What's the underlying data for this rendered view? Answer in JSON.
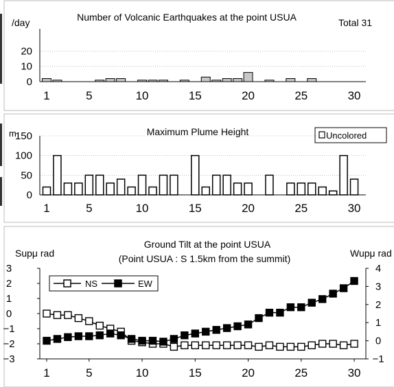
{
  "chart_data": [
    {
      "type": "bar",
      "title": "Number of Volcanic Earthquakes at the point USUA",
      "ylabel": "/day",
      "annotation": "Total 31",
      "ylim": [
        0,
        30
      ],
      "yticks": [
        0,
        10,
        20
      ],
      "xticks": [
        1,
        5,
        10,
        15,
        20,
        25,
        30
      ],
      "x": [
        1,
        2,
        3,
        4,
        5,
        6,
        7,
        8,
        9,
        10,
        11,
        12,
        13,
        14,
        15,
        16,
        17,
        18,
        19,
        20,
        21,
        22,
        23,
        24,
        25,
        26,
        27,
        28,
        29,
        30
      ],
      "values": [
        2,
        1,
        0,
        0,
        0,
        1,
        2,
        2,
        0,
        1,
        1,
        1,
        0,
        1,
        0,
        3,
        1,
        2,
        2,
        6,
        0,
        1,
        0,
        2,
        0,
        2,
        0,
        0,
        0,
        0
      ],
      "bar_fill": "#c8c8c8"
    },
    {
      "type": "bar",
      "title": "Maximum Plume Height",
      "ylabel": "m",
      "legend": [
        "Uncolored"
      ],
      "ylim": [
        0,
        150
      ],
      "yticks": [
        0,
        50,
        100,
        150
      ],
      "xticks": [
        1,
        5,
        10,
        15,
        20,
        25,
        30
      ],
      "x": [
        1,
        2,
        3,
        4,
        5,
        6,
        7,
        8,
        9,
        10,
        11,
        12,
        13,
        14,
        15,
        16,
        17,
        18,
        19,
        20,
        21,
        22,
        23,
        24,
        25,
        26,
        27,
        28,
        29,
        30
      ],
      "values": [
        20,
        100,
        30,
        30,
        50,
        50,
        30,
        40,
        20,
        50,
        20,
        50,
        50,
        null,
        100,
        20,
        50,
        50,
        30,
        30,
        null,
        50,
        null,
        30,
        30,
        30,
        20,
        10,
        100,
        40
      ],
      "bar_fill": "#ffffff"
    },
    {
      "type": "line",
      "title": "Ground Tilt at the point USUA",
      "subtitle": "(Point USUA : S 1.5km from the summit)",
      "ylabel_left": "Supμ rad",
      "ylabel_right": "Wupμ rad",
      "ylim_left": [
        -3,
        3
      ],
      "ylim_right": [
        -1,
        4
      ],
      "yticks_left": [
        -3,
        -2,
        -1,
        0,
        1,
        2,
        3
      ],
      "yticks_right": [
        -1,
        0,
        1,
        2,
        3,
        4
      ],
      "xticks": [
        1,
        5,
        10,
        15,
        20,
        25,
        30
      ],
      "x": [
        1,
        2,
        3,
        4,
        5,
        6,
        7,
        8,
        9,
        10,
        11,
        12,
        13,
        14,
        15,
        16,
        17,
        18,
        19,
        20,
        21,
        22,
        23,
        24,
        25,
        26,
        27,
        28,
        29,
        30
      ],
      "series": [
        {
          "name": "NS",
          "axis": "left",
          "marker": "open-square",
          "values": [
            0.0,
            -0.1,
            -0.1,
            -0.3,
            -0.5,
            -0.8,
            -1.0,
            -1.2,
            -1.8,
            -1.9,
            -2.0,
            -2.0,
            -2.2,
            -2.1,
            -2.1,
            -2.1,
            -2.1,
            -2.1,
            -2.1,
            -2.1,
            -2.2,
            -2.1,
            -2.2,
            -2.2,
            -2.2,
            -2.1,
            -2.0,
            -2.0,
            -2.1,
            -2.0
          ]
        },
        {
          "name": "EW",
          "axis": "right",
          "marker": "filled-square",
          "values": [
            0.0,
            0.1,
            0.2,
            0.25,
            0.25,
            0.3,
            0.4,
            0.3,
            0.1,
            0.0,
            0.0,
            -0.05,
            0.1,
            0.3,
            0.4,
            0.5,
            0.6,
            0.7,
            0.8,
            0.9,
            1.25,
            1.55,
            1.55,
            1.85,
            1.85,
            2.1,
            2.3,
            2.6,
            2.9,
            3.3
          ]
        }
      ]
    }
  ]
}
